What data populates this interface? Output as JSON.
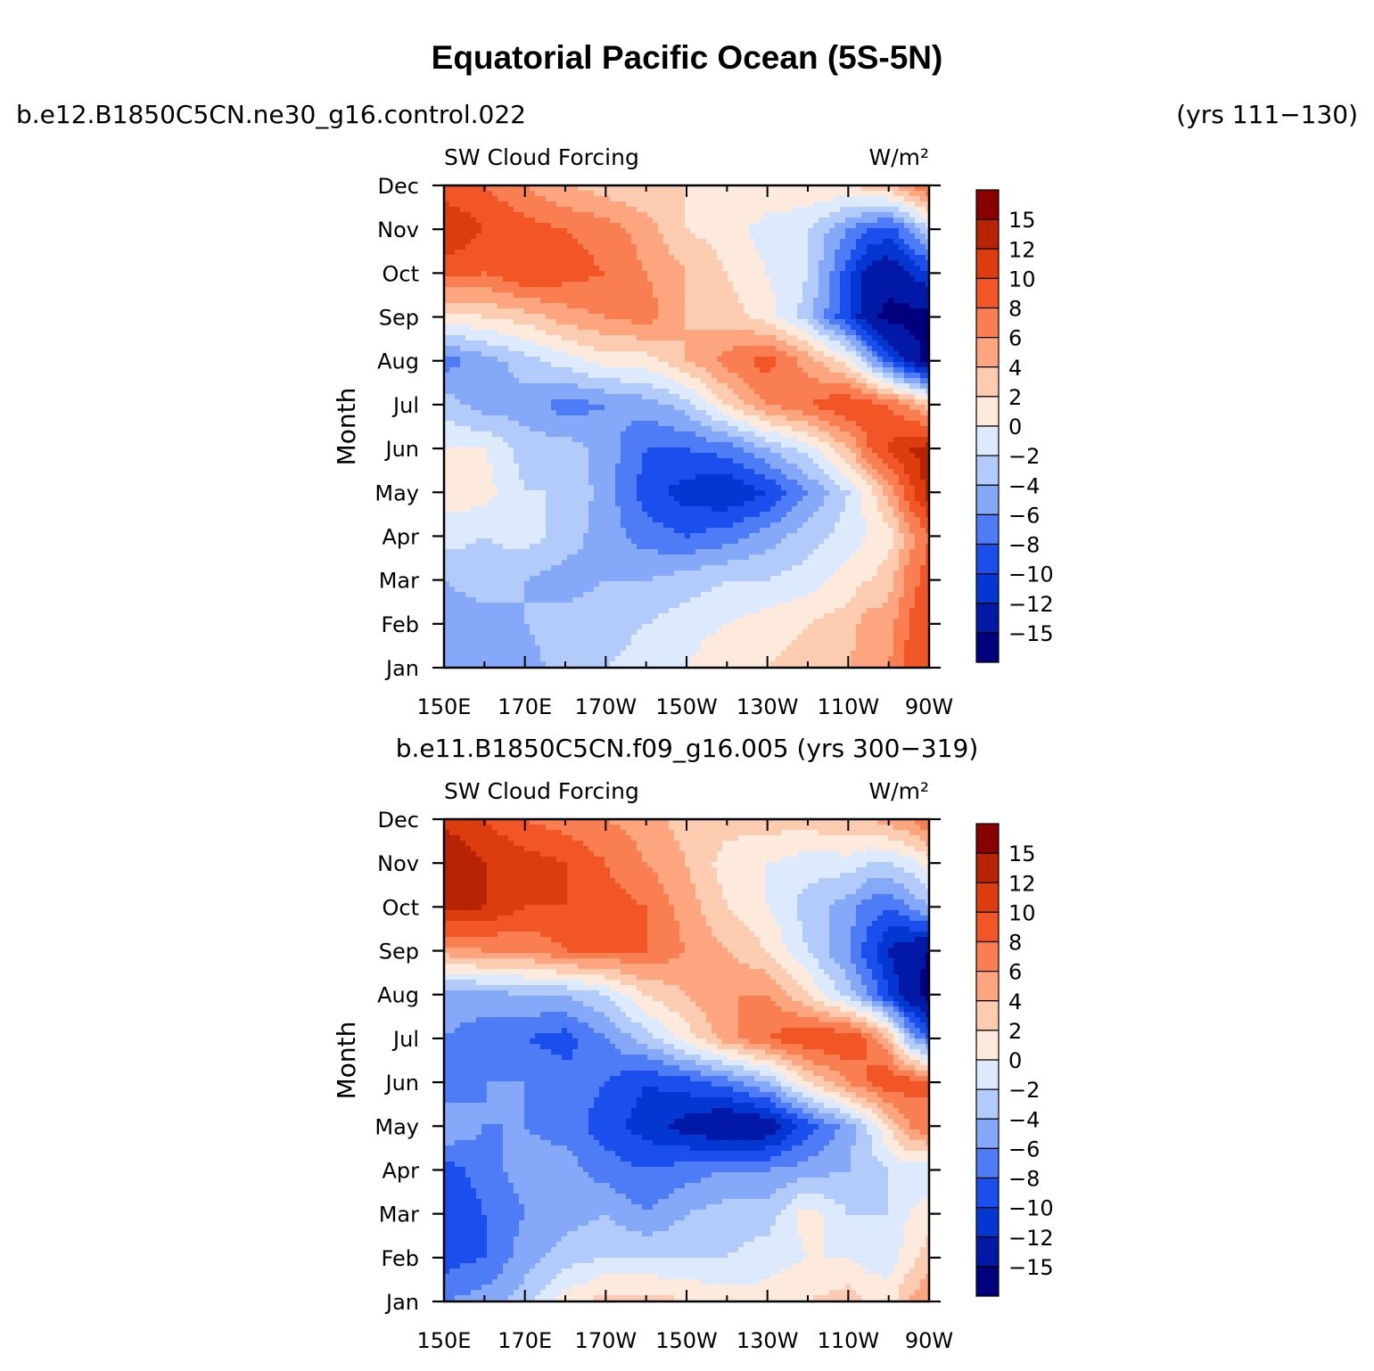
{
  "title": "Equatorial Pacific Ocean (5S-5N)",
  "case1": {
    "name": "b.e12.B1850C5CN.ne30_g16.control.022",
    "years": "(yrs 111−130)"
  },
  "case2": {
    "label": "b.e11.B1850C5CN.f09_g16.005 (yrs 300−319)"
  },
  "chart_data": [
    {
      "type": "heatmap",
      "name": "top-panel",
      "title_left": "SW Cloud Forcing",
      "title_right": "W/m²",
      "ylabel": "Month",
      "xlabel": "",
      "x_ticks": [
        "150E",
        "170E",
        "170W",
        "150W",
        "130W",
        "110W",
        "90W"
      ],
      "x_range_deg_east": [
        150,
        270
      ],
      "y_ticks": [
        "Jan",
        "Feb",
        "Mar",
        "Apr",
        "May",
        "Jun",
        "Jul",
        "Aug",
        "Sep",
        "Oct",
        "Nov",
        "Dec"
      ],
      "colorbar_labels": [
        "15",
        "12",
        "10",
        "8",
        "6",
        "4",
        "2",
        "0",
        "−2",
        "−4",
        "−6",
        "−8",
        "−10",
        "−12",
        "−15"
      ],
      "lon": [
        150,
        160,
        170,
        180,
        190,
        200,
        210,
        220,
        230,
        240,
        250,
        255,
        260,
        265,
        270
      ],
      "values": [
        [
          -4,
          -6,
          -5,
          -3,
          -2,
          -1,
          0,
          2,
          2,
          3,
          4,
          5,
          6,
          9,
          10
        ],
        [
          -5,
          -5,
          -4,
          -3,
          -3,
          -2,
          -1,
          0,
          1,
          2,
          3,
          5,
          5,
          8,
          10
        ],
        [
          -4,
          -3,
          -4,
          -5,
          -4,
          -4,
          -3,
          -2,
          -2,
          -1,
          1,
          2,
          3,
          7,
          9
        ],
        [
          -1,
          -2,
          -1,
          -3,
          -5,
          -7,
          -8,
          -7,
          -5,
          -3,
          -1,
          0,
          1,
          5,
          8
        ],
        [
          1,
          1,
          -2,
          -2,
          -5,
          -9,
          -11,
          -12,
          -10,
          -6,
          -2,
          1,
          5,
          9,
          13
        ],
        [
          0,
          0,
          -3,
          -3,
          -5,
          -8,
          -8,
          -7,
          -4,
          -1,
          4,
          8,
          10,
          12,
          13
        ],
        [
          -3,
          -5,
          -5,
          -7,
          -6,
          -5,
          -3,
          2,
          6,
          8,
          10,
          9,
          8,
          6,
          3
        ],
        [
          -7,
          -5,
          -3,
          -1,
          1,
          1,
          4,
          7,
          9,
          5,
          1,
          -4,
          -9,
          -13,
          -16
        ],
        [
          1,
          2,
          3,
          5,
          6,
          7,
          4,
          3,
          1,
          -3,
          -10,
          -14,
          -16,
          -16,
          -16
        ],
        [
          9,
          8,
          10,
          9,
          8,
          6,
          4,
          2,
          0,
          -2,
          -9,
          -13,
          -14,
          -12,
          -10
        ],
        [
          12,
          10,
          9,
          8,
          7,
          5,
          2,
          1,
          -1,
          -2,
          -6,
          -8,
          -9,
          -6,
          -2
        ],
        [
          9,
          8,
          6,
          4,
          3,
          2,
          2,
          2,
          2,
          2,
          2,
          3,
          4,
          6,
          8
        ]
      ]
    },
    {
      "type": "heatmap",
      "name": "bottom-panel",
      "title_left": "SW Cloud Forcing",
      "title_right": "W/m²",
      "ylabel": "Month",
      "xlabel": "",
      "x_ticks": [
        "150E",
        "170E",
        "170W",
        "150W",
        "130W",
        "110W",
        "90W"
      ],
      "x_range_deg_east": [
        150,
        270
      ],
      "y_ticks": [
        "Jan",
        "Feb",
        "Mar",
        "Apr",
        "May",
        "Jun",
        "Jul",
        "Aug",
        "Sep",
        "Oct",
        "Nov",
        "Dec"
      ],
      "colorbar_labels": [
        "15",
        "12",
        "10",
        "8",
        "6",
        "4",
        "2",
        "0",
        "−2",
        "−4",
        "−6",
        "−8",
        "−10",
        "−12",
        "−15"
      ],
      "lon": [
        150,
        160,
        170,
        180,
        190,
        200,
        210,
        220,
        230,
        240,
        250,
        255,
        260,
        265,
        270
      ],
      "values": [
        [
          -6,
          -5,
          -3,
          1,
          3,
          3,
          2,
          1,
          1,
          2,
          3,
          2,
          1,
          4,
          6
        ],
        [
          -9,
          -8,
          -5,
          -3,
          -2,
          -2,
          -2,
          -2,
          -1,
          0,
          0,
          -1,
          -1,
          1,
          3
        ],
        [
          -10,
          -8,
          -6,
          -5,
          -4,
          -6,
          -4,
          -3,
          -3,
          1,
          -2,
          -2,
          -2,
          0,
          1
        ],
        [
          -9,
          -7,
          -5,
          -5,
          -7,
          -8,
          -7,
          -6,
          -6,
          -5,
          -4,
          -3,
          -2,
          -1,
          -2
        ],
        [
          -4,
          -6,
          -6,
          -7,
          -9,
          -11,
          -13,
          -15,
          -14,
          -9,
          -5,
          -2,
          2,
          6,
          8
        ],
        [
          -8,
          -6,
          -6,
          -7,
          -8,
          -10,
          -9,
          -7,
          -4,
          2,
          6,
          8,
          10,
          9,
          8
        ],
        [
          -6,
          -7,
          -8,
          -9,
          -6,
          -3,
          1,
          5,
          8,
          10,
          10,
          8,
          4,
          -4,
          -8
        ],
        [
          -5,
          -5,
          -4,
          -4,
          -2,
          2,
          4,
          6,
          6,
          2,
          -3,
          -6,
          -10,
          -14,
          -16
        ],
        [
          5,
          6,
          6,
          8,
          8,
          8,
          6,
          4,
          2,
          -2,
          -6,
          -9,
          -12,
          -14,
          -15
        ],
        [
          13,
          12,
          10,
          10,
          9,
          8,
          5,
          2,
          0,
          -3,
          -5,
          -7,
          -8,
          -6,
          -4
        ],
        [
          15,
          12,
          11,
          10,
          8,
          6,
          4,
          1,
          0,
          -1,
          -1,
          -2,
          -2,
          -1,
          1
        ],
        [
          11,
          10,
          8,
          7,
          6,
          5,
          3,
          3,
          3,
          3,
          4,
          4,
          5,
          6,
          8
        ]
      ]
    }
  ],
  "colors": {
    "levels": [
      -15,
      -12,
      -10,
      -8,
      -6,
      -4,
      -2,
      0,
      2,
      4,
      6,
      8,
      10,
      12,
      15
    ],
    "palette": [
      "#00007f",
      "#0219a8",
      "#0437d2",
      "#1a4fee",
      "#4e7cf6",
      "#85a8f9",
      "#b3cbfa",
      "#dde9fd",
      "#feeadd",
      "#fdccb0",
      "#fca57e",
      "#f97f52",
      "#f25627",
      "#dd3d0e",
      "#b82303",
      "#890000"
    ]
  }
}
